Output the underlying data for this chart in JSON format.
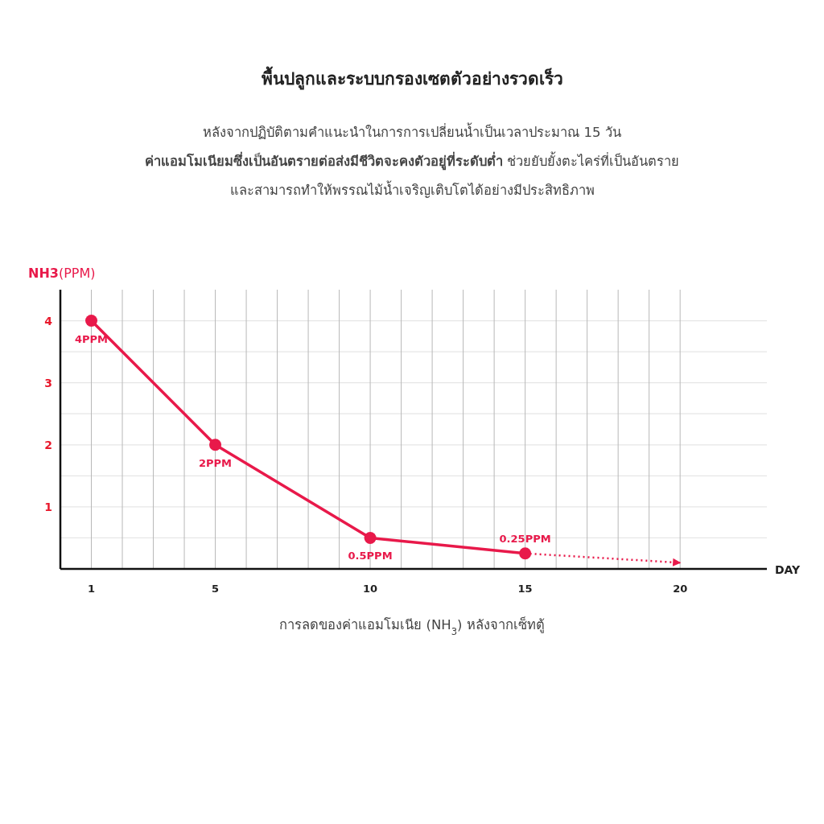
{
  "chart_data": {
    "type": "line",
    "title": "พื้นปลูกและระบบกรองเซตตัวอย่างรวดเร็ว",
    "subtitle": "หลังจากปฏิบัติตามคำแนะนำในการการเปลี่ยนน้ำเป็นเวลาประมาณ  15 วัน\n**ค่าแอมโมเนียมซึ่งเป็นอันตรายต่อส่งมีชีวิตจะคงตัวอยู่ที่ระดับต่ำ**  ช่วยยับยั้งตะไคร่ที่เป็นอันตราย\nและสามารถทำให้พรรณไม้น้ำเจริญเติบโตได้อย่างมีประสิทธิภาพ",
    "xlabel": "DAY",
    "ylabel": "**NH3**(PPM)",
    "annotations": [
      "การลดของค่าแอมโมเนีย  (NH$_{3}$) หลังจากเซ็ทตู้"
    ],
    "marker": "circle",
    "grid": true,
    "series": [
      {
        "color": "#e8194a",
        "x": [
          1,
          5,
          10,
          15
        ],
        "values": [
          4,
          2,
          0.5,
          0.25
        ],
        "value_labels": [
          "4PPM",
          "2PPM",
          "0.5PPM",
          "0.25PPM"
        ]
      },
      {
        "color": "#e8194a",
        "x": [
          15,
          20
        ],
        "values": [
          0.25,
          0.1
        ],
        "line_style": "dotted",
        "marker": "none"
      }
    ],
    "xlim": [
      0,
      22.8
    ],
    "ylim": [
      0,
      4.5
    ],
    "xticks": [
      1,
      {
        "value": 2,
        "label": null
      },
      {
        "value": 3,
        "label": null
      },
      {
        "value": 4,
        "label": null
      },
      5,
      {
        "value": 6,
        "label": null
      },
      {
        "value": 7,
        "label": null
      },
      {
        "value": 8,
        "label": null
      },
      {
        "value": 9,
        "label": null
      },
      10,
      {
        "value": 11,
        "label": null
      },
      {
        "value": 12,
        "label": null
      },
      {
        "value": 13,
        "label": null
      },
      {
        "value": 14,
        "label": null
      },
      15,
      {
        "value": 16,
        "label": null
      },
      {
        "value": 17,
        "label": null
      },
      {
        "value": 18,
        "label": null
      },
      {
        "value": 19,
        "label": null
      },
      20
    ],
    "yticks": [
      {
        "value": 0.5,
        "label": null
      },
      1,
      {
        "value": 1.5,
        "label": null
      },
      2,
      {
        "value": 2.5,
        "label": null
      },
      3,
      {
        "value": 3.5,
        "label": null
      },
      4
    ]
  }
}
